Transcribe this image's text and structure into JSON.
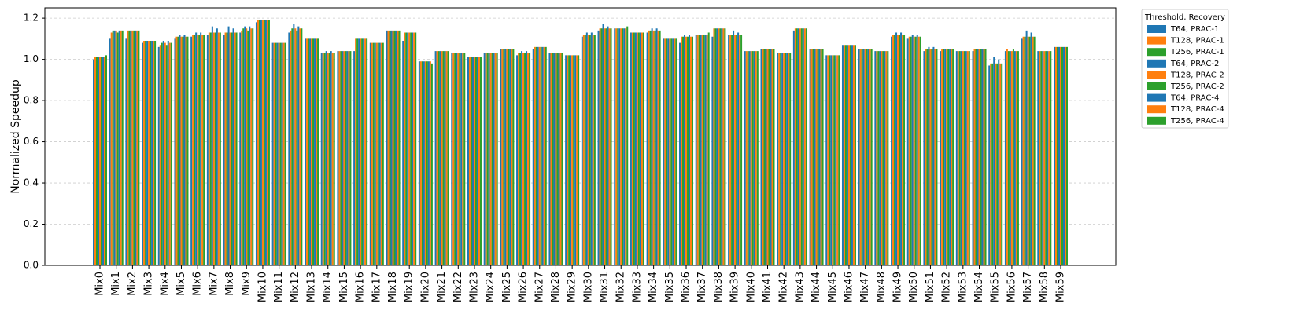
{
  "chart_data": {
    "type": "bar",
    "y_label": "Normalized Speedup",
    "legend_title": "Threshold, Recovery",
    "categories": [
      "Mix0",
      "Mix1",
      "Mix2",
      "Mix3",
      "Mix4",
      "Mix5",
      "Mix6",
      "Mix7",
      "Mix8",
      "Mix9",
      "Mix10",
      "Mix11",
      "Mix12",
      "Mix13",
      "Mix14",
      "Mix15",
      "Mix16",
      "Mix17",
      "Mix18",
      "Mix19",
      "Mix20",
      "Mix21",
      "Mix22",
      "Mix23",
      "Mix24",
      "Mix25",
      "Mix26",
      "Mix27",
      "Mix28",
      "Mix29",
      "Mix30",
      "Mix31",
      "Mix32",
      "Mix33",
      "Mix34",
      "Mix35",
      "Mix36",
      "Mix37",
      "Mix38",
      "Mix39",
      "Mix40",
      "Mix41",
      "Mix42",
      "Mix43",
      "Mix44",
      "Mix45",
      "Mix46",
      "Mix47",
      "Mix48",
      "Mix49",
      "Mix50",
      "Mix51",
      "Mix52",
      "Mix53",
      "Mix54",
      "Mix55",
      "Mix56",
      "Mix57",
      "Mix58",
      "Mix59"
    ],
    "ylim": [
      0,
      1.25
    ],
    "yticks": [
      {
        "value": 0,
        "label": "0.0"
      },
      {
        "value": 0.2,
        "label": "0.2"
      },
      {
        "value": 0.4,
        "label": "0.4"
      },
      {
        "value": 0.6,
        "label": "0.6"
      },
      {
        "value": 0.8,
        "label": "0.8"
      },
      {
        "value": 1,
        "label": "1.0"
      },
      {
        "value": 1.2,
        "label": "1.2"
      }
    ],
    "grid": true,
    "series": [
      {
        "name": "T64, PRAC-1",
        "color": "#1f77b4",
        "values": [
          1.0,
          1.1,
          1.1,
          1.08,
          1.06,
          1.1,
          1.11,
          1.12,
          1.12,
          1.13,
          1.18,
          1.08,
          1.13,
          1.1,
          1.03,
          1.04,
          1.04,
          1.08,
          1.14,
          1.09,
          0.99,
          1.04,
          1.03,
          1.01,
          1.03,
          1.05,
          1.02,
          1.05,
          1.03,
          1.02,
          1.11,
          1.14,
          1.15,
          1.13,
          1.13,
          1.1,
          1.08,
          1.12,
          1.11,
          1.12,
          1.04,
          1.05,
          1.03,
          1.14,
          1.05,
          1.02,
          1.07,
          1.05,
          1.04,
          1.11,
          1.1,
          1.04,
          1.04,
          1.04,
          1.04,
          0.97,
          1.04,
          1.1,
          1.04,
          1.06
        ]
      },
      {
        "name": "T128, PRAC-1",
        "color": "#ff7f0e",
        "values": [
          1.01,
          1.13,
          1.14,
          1.09,
          1.07,
          1.11,
          1.12,
          1.13,
          1.13,
          1.14,
          1.19,
          1.08,
          1.14,
          1.1,
          1.03,
          1.04,
          1.1,
          1.08,
          1.14,
          1.13,
          0.99,
          1.04,
          1.03,
          1.01,
          1.03,
          1.05,
          1.03,
          1.06,
          1.03,
          1.02,
          1.12,
          1.15,
          1.15,
          1.13,
          1.14,
          1.1,
          1.11,
          1.12,
          1.15,
          1.12,
          1.04,
          1.05,
          1.03,
          1.15,
          1.05,
          1.02,
          1.07,
          1.05,
          1.04,
          1.12,
          1.11,
          1.05,
          1.05,
          1.04,
          1.05,
          0.98,
          1.05,
          1.11,
          1.04,
          1.06
        ]
      },
      {
        "name": "T256, PRAC-1",
        "color": "#2ca02c",
        "values": [
          1.01,
          1.14,
          1.14,
          1.09,
          1.08,
          1.11,
          1.12,
          1.13,
          1.13,
          1.15,
          1.19,
          1.08,
          1.15,
          1.1,
          1.03,
          1.04,
          1.1,
          1.08,
          1.14,
          1.13,
          0.99,
          1.04,
          1.03,
          1.01,
          1.03,
          1.05,
          1.03,
          1.06,
          1.03,
          1.02,
          1.12,
          1.15,
          1.15,
          1.13,
          1.14,
          1.1,
          1.11,
          1.12,
          1.15,
          1.12,
          1.04,
          1.05,
          1.03,
          1.15,
          1.05,
          1.02,
          1.07,
          1.05,
          1.04,
          1.12,
          1.11,
          1.05,
          1.05,
          1.04,
          1.05,
          0.98,
          1.04,
          1.11,
          1.04,
          1.06
        ]
      },
      {
        "name": "T64, PRAC-2",
        "color": "#1f77b4",
        "values": [
          1.01,
          1.14,
          1.14,
          1.09,
          1.09,
          1.12,
          1.13,
          1.16,
          1.16,
          1.16,
          1.19,
          1.08,
          1.17,
          1.1,
          1.04,
          1.04,
          1.1,
          1.08,
          1.14,
          1.13,
          0.99,
          1.04,
          1.03,
          1.01,
          1.03,
          1.05,
          1.04,
          1.06,
          1.03,
          1.02,
          1.13,
          1.17,
          1.15,
          1.13,
          1.15,
          1.1,
          1.12,
          1.12,
          1.15,
          1.14,
          1.04,
          1.05,
          1.03,
          1.15,
          1.05,
          1.02,
          1.07,
          1.05,
          1.04,
          1.13,
          1.12,
          1.06,
          1.05,
          1.04,
          1.05,
          1.01,
          1.04,
          1.14,
          1.04,
          1.06
        ]
      },
      {
        "name": "T128, PRAC-2",
        "color": "#ff7f0e",
        "values": [
          1.01,
          1.14,
          1.14,
          1.09,
          1.08,
          1.11,
          1.12,
          1.13,
          1.13,
          1.15,
          1.19,
          1.08,
          1.15,
          1.1,
          1.03,
          1.04,
          1.1,
          1.08,
          1.14,
          1.13,
          0.99,
          1.04,
          1.03,
          1.01,
          1.03,
          1.05,
          1.03,
          1.06,
          1.03,
          1.02,
          1.12,
          1.15,
          1.15,
          1.13,
          1.14,
          1.1,
          1.11,
          1.12,
          1.15,
          1.12,
          1.04,
          1.05,
          1.03,
          1.15,
          1.05,
          1.02,
          1.07,
          1.05,
          1.04,
          1.12,
          1.11,
          1.05,
          1.05,
          1.04,
          1.05,
          0.98,
          1.04,
          1.11,
          1.04,
          1.06
        ]
      },
      {
        "name": "T256, PRAC-2",
        "color": "#2ca02c",
        "values": [
          1.01,
          1.13,
          1.14,
          1.09,
          1.07,
          1.11,
          1.12,
          1.13,
          1.13,
          1.14,
          1.19,
          1.08,
          1.14,
          1.1,
          1.03,
          1.04,
          1.1,
          1.08,
          1.14,
          1.13,
          0.99,
          1.04,
          1.03,
          1.01,
          1.03,
          1.05,
          1.03,
          1.06,
          1.03,
          1.02,
          1.12,
          1.15,
          1.15,
          1.13,
          1.14,
          1.1,
          1.11,
          1.12,
          1.15,
          1.12,
          1.04,
          1.05,
          1.03,
          1.15,
          1.05,
          1.02,
          1.07,
          1.05,
          1.04,
          1.12,
          1.11,
          1.05,
          1.05,
          1.04,
          1.05,
          0.98,
          1.05,
          1.11,
          1.04,
          1.06
        ]
      },
      {
        "name": "T64, PRAC-4",
        "color": "#1f77b4",
        "values": [
          1.01,
          1.14,
          1.14,
          1.09,
          1.09,
          1.12,
          1.13,
          1.15,
          1.15,
          1.16,
          1.19,
          1.08,
          1.16,
          1.1,
          1.04,
          1.04,
          1.1,
          1.08,
          1.14,
          1.13,
          0.99,
          1.04,
          1.03,
          1.01,
          1.03,
          1.05,
          1.04,
          1.06,
          1.03,
          1.02,
          1.13,
          1.16,
          1.15,
          1.13,
          1.15,
          1.1,
          1.12,
          1.12,
          1.15,
          1.13,
          1.04,
          1.05,
          1.03,
          1.15,
          1.05,
          1.02,
          1.07,
          1.05,
          1.04,
          1.13,
          1.12,
          1.06,
          1.05,
          1.04,
          1.05,
          1.0,
          1.04,
          1.13,
          1.04,
          1.06
        ]
      },
      {
        "name": "T128, PRAC-4",
        "color": "#ff7f0e",
        "values": [
          1.01,
          1.14,
          1.14,
          1.09,
          1.08,
          1.11,
          1.12,
          1.13,
          1.13,
          1.15,
          1.19,
          1.08,
          1.15,
          1.1,
          1.03,
          1.04,
          1.1,
          1.08,
          1.14,
          1.13,
          0.99,
          1.04,
          1.03,
          1.01,
          1.03,
          1.05,
          1.03,
          1.06,
          1.03,
          1.02,
          1.12,
          1.15,
          1.15,
          1.13,
          1.14,
          1.1,
          1.11,
          1.12,
          1.15,
          1.12,
          1.04,
          1.05,
          1.03,
          1.15,
          1.05,
          1.02,
          1.07,
          1.05,
          1.04,
          1.12,
          1.11,
          1.05,
          1.05,
          1.04,
          1.05,
          0.98,
          1.04,
          1.11,
          1.04,
          1.06
        ]
      },
      {
        "name": "T256, PRAC-4",
        "color": "#2ca02c",
        "values": [
          1.02,
          1.14,
          1.14,
          1.09,
          1.08,
          1.11,
          1.12,
          1.13,
          1.13,
          1.15,
          1.19,
          1.08,
          1.15,
          1.1,
          1.03,
          1.04,
          1.1,
          1.08,
          1.14,
          1.13,
          0.98,
          1.04,
          1.03,
          1.01,
          1.03,
          1.05,
          1.03,
          1.06,
          1.03,
          1.02,
          1.12,
          1.15,
          1.16,
          1.13,
          1.14,
          1.1,
          1.11,
          1.13,
          1.15,
          1.12,
          1.04,
          1.05,
          1.03,
          1.15,
          1.05,
          1.02,
          1.07,
          1.05,
          1.04,
          1.12,
          1.11,
          1.05,
          1.05,
          1.04,
          1.05,
          0.98,
          1.04,
          1.11,
          1.04,
          1.06
        ]
      }
    ]
  }
}
